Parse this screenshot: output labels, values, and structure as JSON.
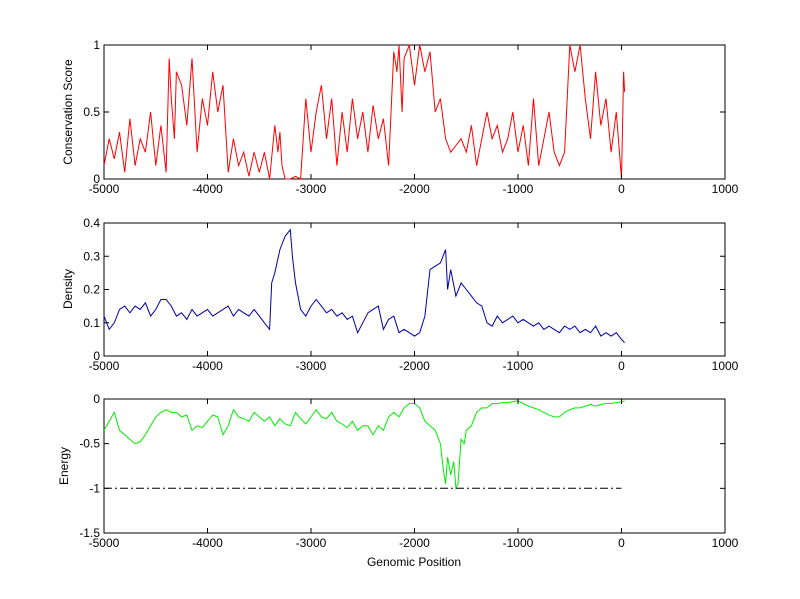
{
  "chart_data": [
    {
      "type": "line",
      "ylabel": "Conservation Score",
      "xlabel": "",
      "xlim": [
        -5000,
        1000
      ],
      "ylim": [
        0,
        1
      ],
      "xticks": [
        -5000,
        -4000,
        -3000,
        -2000,
        -1000,
        0,
        1000
      ],
      "xtick_labels": [
        "-5000",
        "-4000",
        "-3000",
        "-2000",
        "-1000",
        "0",
        "1000"
      ],
      "yticks": [
        0,
        0.5,
        1
      ],
      "ytick_labels": [
        "0",
        "0.5",
        "1"
      ],
      "grid": false,
      "series": [
        {
          "color": "#ff0000",
          "x": [
            -5000,
            -4950,
            -4900,
            -4850,
            -4800,
            -4750,
            -4700,
            -4650,
            -4600,
            -4550,
            -4500,
            -4450,
            -4400,
            -4370,
            -4350,
            -4320,
            -4300,
            -4250,
            -4200,
            -4150,
            -4100,
            -4050,
            -4000,
            -3950,
            -3900,
            -3850,
            -3800,
            -3750,
            -3700,
            -3650,
            -3600,
            -3550,
            -3500,
            -3450,
            -3400,
            -3350,
            -3320,
            -3300,
            -3280,
            -3250,
            -3200,
            -3150,
            -3100,
            -3050,
            -3000,
            -2950,
            -2900,
            -2850,
            -2800,
            -2750,
            -2700,
            -2650,
            -2600,
            -2550,
            -2500,
            -2450,
            -2400,
            -2350,
            -2300,
            -2250,
            -2200,
            -2170,
            -2150,
            -2120,
            -2100,
            -2050,
            -2000,
            -1950,
            -1900,
            -1850,
            -1800,
            -1750,
            -1700,
            -1650,
            -1600,
            -1550,
            -1500,
            -1450,
            -1400,
            -1350,
            -1300,
            -1250,
            -1200,
            -1150,
            -1100,
            -1050,
            -1000,
            -950,
            -900,
            -850,
            -800,
            -750,
            -700,
            -650,
            -600,
            -550,
            -500,
            -450,
            -400,
            -350,
            -300,
            -250,
            -200,
            -150,
            -100,
            -50,
            0,
            20,
            30
          ],
          "y": [
            0.1,
            0.3,
            0.15,
            0.35,
            0.05,
            0.45,
            0.1,
            0.3,
            0.2,
            0.5,
            0.1,
            0.4,
            0.05,
            0.9,
            0.6,
            0.3,
            0.8,
            0.7,
            0.4,
            0.9,
            0.2,
            0.6,
            0.4,
            0.8,
            0.5,
            0.7,
            0.05,
            0.3,
            0.1,
            0.2,
            0.02,
            0.2,
            0.05,
            0.2,
            0.0,
            0.4,
            0.2,
            0.35,
            0.1,
            0.0,
            0.0,
            0.02,
            0.0,
            0.6,
            0.2,
            0.5,
            0.7,
            0.3,
            0.6,
            0.1,
            0.5,
            0.2,
            0.6,
            0.3,
            0.5,
            0.2,
            0.55,
            0.3,
            0.45,
            0.1,
            0.95,
            0.8,
            1.0,
            0.5,
            0.9,
            1.0,
            0.7,
            1.0,
            0.8,
            0.95,
            0.5,
            0.6,
            0.3,
            0.2,
            0.25,
            0.3,
            0.2,
            0.4,
            0.1,
            0.3,
            0.5,
            0.3,
            0.4,
            0.2,
            0.3,
            0.5,
            0.2,
            0.4,
            0.1,
            0.6,
            0.1,
            0.3,
            0.5,
            0.2,
            0.1,
            0.2,
            1.0,
            0.8,
            1.0,
            0.6,
            0.3,
            0.8,
            0.4,
            0.6,
            0.2,
            0.5,
            0.0,
            0.8,
            0.65
          ]
        }
      ]
    },
    {
      "type": "line",
      "ylabel": "Density",
      "xlabel": "",
      "xlim": [
        -5000,
        1000
      ],
      "ylim": [
        0,
        0.4
      ],
      "xticks": [
        -5000,
        -4000,
        -3000,
        -2000,
        -1000,
        0,
        1000
      ],
      "xtick_labels": [
        "-5000",
        "-4000",
        "-3000",
        "-2000",
        "-1000",
        "0",
        "1000"
      ],
      "yticks": [
        0,
        0.1,
        0.2,
        0.3,
        0.4
      ],
      "ytick_labels": [
        "0",
        "0.1",
        "0.2",
        "0.3",
        "0.4"
      ],
      "grid": false,
      "series": [
        {
          "color": "#0000aa",
          "x": [
            -5000,
            -4950,
            -4900,
            -4850,
            -4800,
            -4750,
            -4700,
            -4650,
            -4600,
            -4550,
            -4500,
            -4450,
            -4400,
            -4350,
            -4300,
            -4250,
            -4200,
            -4150,
            -4100,
            -4050,
            -4000,
            -3950,
            -3900,
            -3850,
            -3800,
            -3750,
            -3700,
            -3650,
            -3600,
            -3550,
            -3500,
            -3450,
            -3400,
            -3380,
            -3350,
            -3300,
            -3250,
            -3200,
            -3180,
            -3150,
            -3100,
            -3050,
            -3000,
            -2950,
            -2900,
            -2850,
            -2800,
            -2750,
            -2700,
            -2650,
            -2600,
            -2550,
            -2500,
            -2450,
            -2400,
            -2350,
            -2300,
            -2250,
            -2200,
            -2150,
            -2100,
            -2050,
            -2000,
            -1950,
            -1900,
            -1850,
            -1800,
            -1750,
            -1700,
            -1680,
            -1650,
            -1600,
            -1550,
            -1500,
            -1450,
            -1400,
            -1350,
            -1300,
            -1250,
            -1200,
            -1150,
            -1100,
            -1050,
            -1000,
            -950,
            -900,
            -850,
            -800,
            -750,
            -700,
            -650,
            -600,
            -550,
            -500,
            -450,
            -400,
            -350,
            -300,
            -250,
            -200,
            -150,
            -100,
            -50,
            0,
            30
          ],
          "y": [
            0.12,
            0.08,
            0.1,
            0.14,
            0.15,
            0.13,
            0.15,
            0.14,
            0.16,
            0.12,
            0.14,
            0.17,
            0.17,
            0.15,
            0.12,
            0.13,
            0.11,
            0.14,
            0.12,
            0.13,
            0.14,
            0.12,
            0.13,
            0.14,
            0.15,
            0.12,
            0.14,
            0.13,
            0.12,
            0.14,
            0.12,
            0.1,
            0.08,
            0.22,
            0.25,
            0.32,
            0.36,
            0.38,
            0.3,
            0.22,
            0.14,
            0.12,
            0.15,
            0.17,
            0.15,
            0.13,
            0.14,
            0.12,
            0.13,
            0.11,
            0.12,
            0.07,
            0.1,
            0.13,
            0.14,
            0.15,
            0.08,
            0.11,
            0.12,
            0.07,
            0.08,
            0.07,
            0.06,
            0.07,
            0.12,
            0.26,
            0.27,
            0.28,
            0.32,
            0.2,
            0.26,
            0.18,
            0.22,
            0.2,
            0.18,
            0.16,
            0.15,
            0.1,
            0.09,
            0.12,
            0.1,
            0.11,
            0.12,
            0.1,
            0.11,
            0.1,
            0.09,
            0.1,
            0.08,
            0.09,
            0.08,
            0.07,
            0.09,
            0.08,
            0.09,
            0.07,
            0.08,
            0.07,
            0.09,
            0.06,
            0.07,
            0.06,
            0.07,
            0.05,
            0.04
          ]
        }
      ]
    },
    {
      "type": "line",
      "ylabel": "Energy",
      "xlabel": "Genomic Position",
      "xlim": [
        -5000,
        1000
      ],
      "ylim": [
        -1.5,
        0
      ],
      "xticks": [
        -5000,
        -4000,
        -3000,
        -2000,
        -1000,
        0,
        1000
      ],
      "xtick_labels": [
        "-5000",
        "-4000",
        "-3000",
        "-2000",
        "-1000",
        "0",
        "1000"
      ],
      "yticks": [
        -1.5,
        -1,
        -0.5,
        0
      ],
      "ytick_labels": [
        "-1.5",
        "-1",
        "-0.5",
        "0"
      ],
      "grid": false,
      "series": [
        {
          "color": "#00ee00",
          "x": [
            -5000,
            -4950,
            -4900,
            -4850,
            -4800,
            -4750,
            -4700,
            -4650,
            -4600,
            -4550,
            -4500,
            -4450,
            -4400,
            -4350,
            -4300,
            -4250,
            -4200,
            -4150,
            -4100,
            -4050,
            -4000,
            -3950,
            -3900,
            -3850,
            -3800,
            -3750,
            -3700,
            -3650,
            -3600,
            -3550,
            -3500,
            -3450,
            -3400,
            -3350,
            -3300,
            -3250,
            -3200,
            -3150,
            -3100,
            -3050,
            -3000,
            -2950,
            -2900,
            -2850,
            -2800,
            -2750,
            -2700,
            -2650,
            -2600,
            -2550,
            -2500,
            -2450,
            -2400,
            -2350,
            -2300,
            -2250,
            -2200,
            -2150,
            -2100,
            -2050,
            -2000,
            -1950,
            -1900,
            -1850,
            -1800,
            -1750,
            -1720,
            -1700,
            -1680,
            -1650,
            -1620,
            -1600,
            -1580,
            -1550,
            -1520,
            -1500,
            -1450,
            -1400,
            -1350,
            -1300,
            -1250,
            -1200,
            -1150,
            -1100,
            -1050,
            -1000,
            -950,
            -900,
            -850,
            -800,
            -750,
            -700,
            -650,
            -600,
            -550,
            -500,
            -450,
            -400,
            -350,
            -300,
            -250,
            -200,
            -150,
            -100,
            -50,
            0,
            30
          ],
          "y": [
            -0.35,
            -0.25,
            -0.15,
            -0.35,
            -0.4,
            -0.45,
            -0.5,
            -0.48,
            -0.4,
            -0.3,
            -0.2,
            -0.15,
            -0.12,
            -0.15,
            -0.15,
            -0.2,
            -0.18,
            -0.35,
            -0.3,
            -0.32,
            -0.25,
            -0.18,
            -0.2,
            -0.4,
            -0.3,
            -0.12,
            -0.2,
            -0.22,
            -0.25,
            -0.15,
            -0.2,
            -0.25,
            -0.2,
            -0.3,
            -0.22,
            -0.28,
            -0.3,
            -0.15,
            -0.22,
            -0.28,
            -0.2,
            -0.12,
            -0.2,
            -0.22,
            -0.15,
            -0.25,
            -0.28,
            -0.32,
            -0.25,
            -0.35,
            -0.3,
            -0.3,
            -0.4,
            -0.3,
            -0.35,
            -0.2,
            -0.15,
            -0.2,
            -0.1,
            -0.05,
            -0.05,
            -0.1,
            -0.25,
            -0.3,
            -0.35,
            -0.5,
            -0.8,
            -0.95,
            -0.65,
            -0.85,
            -0.7,
            -1.0,
            -0.95,
            -0.45,
            -0.5,
            -0.35,
            -0.3,
            -0.15,
            -0.1,
            -0.1,
            -0.05,
            -0.05,
            -0.04,
            -0.04,
            -0.03,
            -0.02,
            -0.05,
            -0.08,
            -0.1,
            -0.12,
            -0.15,
            -0.18,
            -0.2,
            -0.2,
            -0.15,
            -0.12,
            -0.1,
            -0.1,
            -0.08,
            -0.06,
            -0.08,
            -0.06,
            -0.05,
            -0.05,
            -0.04,
            -0.03,
            -0.02
          ]
        },
        {
          "color": "#000000",
          "line_style": "dash-dot",
          "x": [
            -5000,
            0
          ],
          "y": [
            -1,
            -1
          ]
        }
      ]
    }
  ]
}
